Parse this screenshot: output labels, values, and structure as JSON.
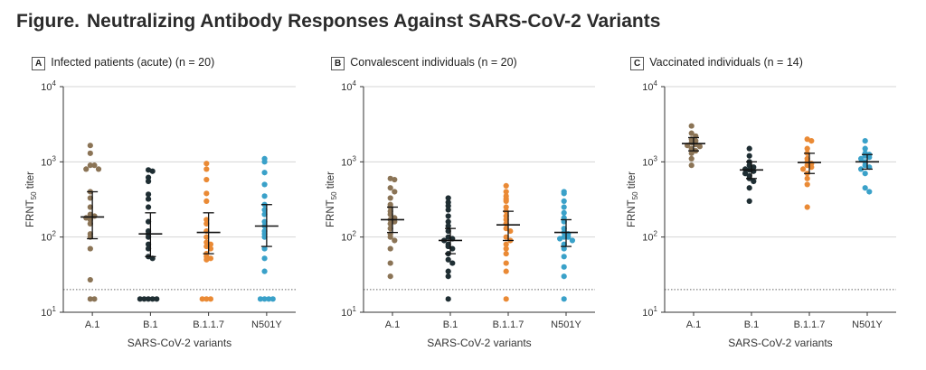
{
  "figure": {
    "label": "Figure.",
    "title": "Neutralizing Antibody Responses Against SARS-CoV-2 Variants"
  },
  "colors": {
    "A.1": "#8b7456",
    "B.1": "#1f2e33",
    "B.1.1.7": "#ea8a35",
    "N501Y": "#3aa1c9"
  },
  "chart_data": [
    {
      "type": "scatter",
      "panel": "A",
      "title": "Infected patients (acute) (n = 20)",
      "xlabel": "SARS-CoV-2 variants",
      "ylabel": "FRNT50 titer",
      "yscale": "log",
      "ylim": [
        10,
        10000
      ],
      "yticks": [
        {
          "value": 10,
          "base": "10",
          "exp": "1"
        },
        {
          "value": 100,
          "base": "10",
          "exp": "2"
        },
        {
          "value": 1000,
          "base": "10",
          "exp": "3"
        },
        {
          "value": 10000,
          "base": "10",
          "exp": "4"
        }
      ],
      "detection_limit": 20,
      "grid": true,
      "categories": [
        "A.1",
        "B.1",
        "B.1.1.7",
        "N501Y"
      ],
      "series": [
        {
          "name": "A.1",
          "values": [
            1650,
            1300,
            900,
            900,
            800,
            800,
            400,
            330,
            250,
            200,
            190,
            180,
            170,
            150,
            110,
            100,
            70,
            27,
            15,
            15
          ],
          "median": 185,
          "ci": [
            95,
            400
          ]
        },
        {
          "name": "B.1",
          "values": [
            780,
            750,
            620,
            550,
            370,
            320,
            250,
            160,
            120,
            110,
            100,
            80,
            70,
            55,
            52,
            15,
            15,
            15,
            15,
            15
          ],
          "median": 110,
          "ci": [
            55,
            210
          ]
        },
        {
          "name": "B.1.1.7",
          "values": [
            950,
            800,
            580,
            380,
            300,
            170,
            150,
            120,
            100,
            85,
            80,
            75,
            70,
            60,
            55,
            52,
            50,
            15,
            15,
            15
          ],
          "median": 115,
          "ci": [
            60,
            210
          ]
        },
        {
          "name": "N501Y",
          "values": [
            1100,
            1000,
            720,
            500,
            350,
            270,
            230,
            200,
            160,
            140,
            120,
            110,
            100,
            70,
            52,
            35,
            15,
            15,
            15,
            15
          ],
          "median": 140,
          "ci": [
            75,
            270
          ]
        }
      ]
    },
    {
      "type": "scatter",
      "panel": "B",
      "title": "Convalescent individuals (n = 20)",
      "xlabel": "SARS-CoV-2 variants",
      "ylabel": "FRNT50 titer",
      "yscale": "log",
      "ylim": [
        10,
        10000
      ],
      "yticks": [
        {
          "value": 10,
          "base": "10",
          "exp": "1"
        },
        {
          "value": 100,
          "base": "10",
          "exp": "2"
        },
        {
          "value": 1000,
          "base": "10",
          "exp": "3"
        },
        {
          "value": 10000,
          "base": "10",
          "exp": "4"
        }
      ],
      "detection_limit": 20,
      "grid": true,
      "categories": [
        "A.1",
        "B.1",
        "B.1.1.7",
        "N501Y"
      ],
      "series": [
        {
          "name": "A.1",
          "values": [
            600,
            580,
            450,
            400,
            330,
            270,
            250,
            220,
            200,
            180,
            170,
            160,
            150,
            130,
            110,
            100,
            90,
            70,
            45,
            30
          ],
          "median": 170,
          "ci": [
            115,
            250
          ]
        },
        {
          "name": "B.1",
          "values": [
            330,
            290,
            260,
            230,
            190,
            160,
            140,
            120,
            100,
            95,
            90,
            80,
            75,
            70,
            60,
            50,
            45,
            35,
            30,
            15
          ],
          "median": 90,
          "ci": [
            60,
            130
          ]
        },
        {
          "name": "B.1.1.7",
          "values": [
            480,
            400,
            350,
            320,
            300,
            250,
            220,
            190,
            170,
            150,
            130,
            120,
            100,
            90,
            80,
            70,
            60,
            45,
            35,
            15
          ],
          "median": 145,
          "ci": [
            90,
            220
          ]
        },
        {
          "name": "N501Y",
          "values": [
            400,
            380,
            300,
            250,
            210,
            180,
            160,
            130,
            115,
            110,
            100,
            100,
            95,
            90,
            80,
            70,
            55,
            40,
            30,
            15
          ],
          "median": 115,
          "ci": [
            75,
            170
          ]
        }
      ]
    },
    {
      "type": "scatter",
      "panel": "C",
      "title": "Vaccinated individuals (n = 14)",
      "xlabel": "SARS-CoV-2 variants",
      "ylabel": "FRNT50 titer",
      "yscale": "log",
      "ylim": [
        10,
        10000
      ],
      "yticks": [
        {
          "value": 10,
          "base": "10",
          "exp": "1"
        },
        {
          "value": 100,
          "base": "10",
          "exp": "2"
        },
        {
          "value": 1000,
          "base": "10",
          "exp": "3"
        },
        {
          "value": 10000,
          "base": "10",
          "exp": "4"
        }
      ],
      "detection_limit": 20,
      "grid": true,
      "categories": [
        "A.1",
        "B.1",
        "B.1.1.7",
        "N501Y"
      ],
      "series": [
        {
          "name": "A.1",
          "values": [
            3000,
            2400,
            2200,
            2000,
            1900,
            1800,
            1700,
            1650,
            1600,
            1500,
            1400,
            1300,
            1100,
            900
          ],
          "median": 1750,
          "ci": [
            1400,
            2100
          ]
        },
        {
          "name": "B.1",
          "values": [
            1500,
            1200,
            1000,
            900,
            850,
            800,
            780,
            750,
            700,
            650,
            600,
            550,
            450,
            300
          ],
          "median": 780,
          "ci": [
            600,
            1000
          ]
        },
        {
          "name": "B.1.1.7",
          "values": [
            2000,
            1900,
            1500,
            1300,
            1100,
            1000,
            950,
            900,
            850,
            800,
            700,
            600,
            500,
            250
          ],
          "median": 980,
          "ci": [
            700,
            1300
          ]
        },
        {
          "name": "N501Y",
          "values": [
            1900,
            1500,
            1300,
            1250,
            1200,
            1150,
            1100,
            1000,
            900,
            850,
            800,
            700,
            450,
            400
          ],
          "median": 1000,
          "ci": [
            800,
            1250
          ]
        }
      ]
    }
  ]
}
